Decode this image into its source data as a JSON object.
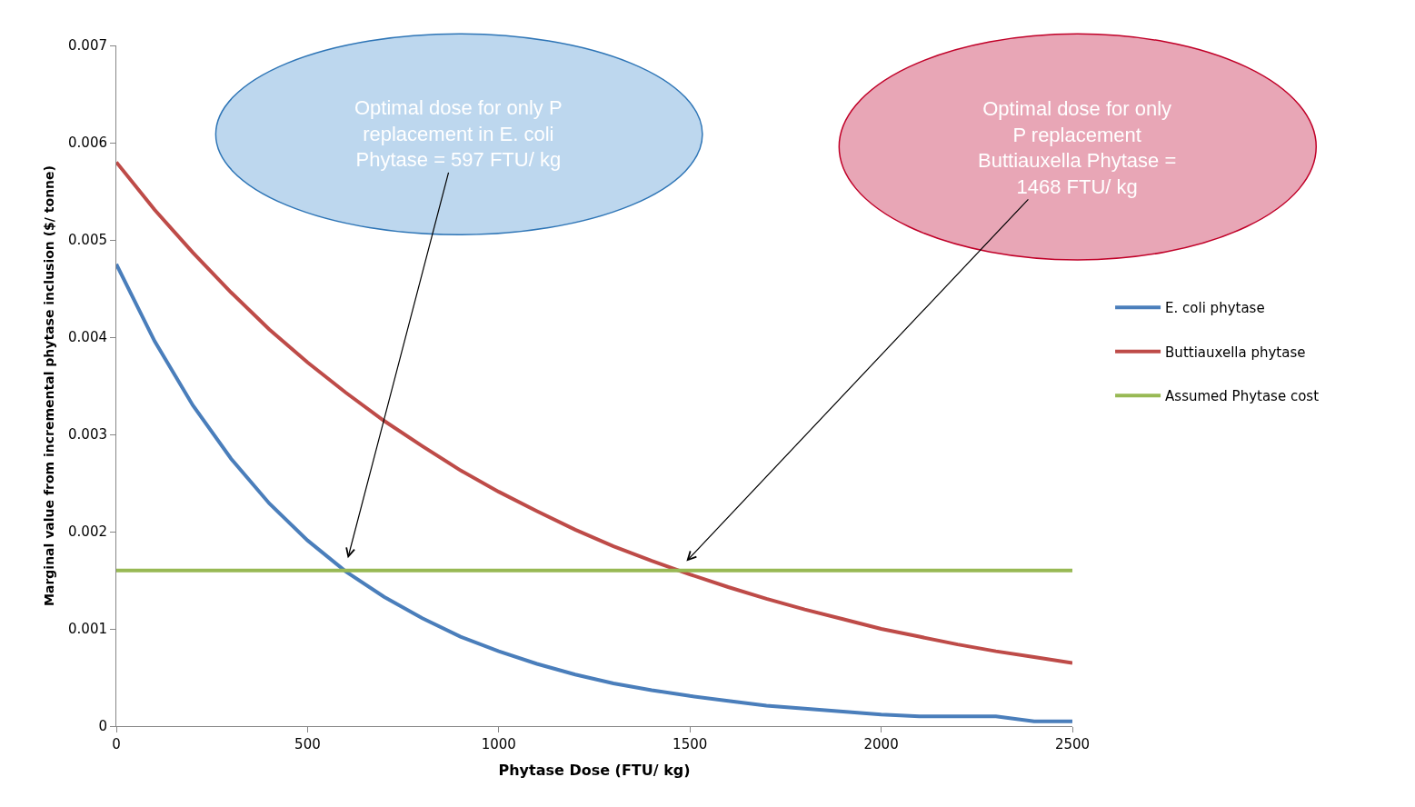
{
  "chart_data": {
    "type": "line",
    "xlabel": "Phytase Dose (FTU/ kg)",
    "ylabel": "Marginal value from incremental phytase inclusion ($/ tonne)",
    "x": [
      0,
      100,
      200,
      300,
      400,
      500,
      600,
      700,
      800,
      900,
      1000,
      1100,
      1200,
      1300,
      1400,
      1500,
      1600,
      1700,
      1800,
      1900,
      2000,
      2100,
      2200,
      2300,
      2400,
      2500
    ],
    "series": [
      {
        "name": "E. coli phytase",
        "color": "#4a7ebb",
        "values": [
          0.00475,
          0.00396,
          0.0033,
          0.00275,
          0.00229,
          0.00191,
          0.00159,
          0.00133,
          0.00111,
          0.00092,
          0.00077,
          0.00064,
          0.00053,
          0.00044,
          0.00037,
          0.00031,
          0.00026,
          0.00021,
          0.00018,
          0.00015,
          0.00012,
          0.0001,
          0.0001,
          0.0001,
          5e-05,
          5e-05
        ]
      },
      {
        "name": "Buttiauxella phytase",
        "color": "#be4b48",
        "values": [
          0.0058,
          0.00531,
          0.00487,
          0.00446,
          0.00408,
          0.00374,
          0.00343,
          0.00314,
          0.00288,
          0.00263,
          0.00241,
          0.00221,
          0.00202,
          0.00185,
          0.0017,
          0.00156,
          0.00143,
          0.00131,
          0.0012,
          0.0011,
          0.001,
          0.00092,
          0.00084,
          0.00077,
          0.00071,
          0.00065
        ]
      },
      {
        "name": "Assumed Phytase cost",
        "color": "#98b954",
        "x": [
          0,
          2500
        ],
        "values": [
          0.0016,
          0.0016
        ]
      }
    ],
    "xlim": [
      0,
      2500
    ],
    "xticks": [
      0,
      500,
      1000,
      1500,
      2000,
      2500
    ],
    "ylim": [
      0,
      0.007
    ],
    "yticks": [
      0,
      0.001,
      0.002,
      0.003,
      0.004,
      0.005,
      0.006,
      0.007
    ],
    "annotations": [
      {
        "text": "Optimal dose for only P replacement in E. coli Phytase = 597 FTU/ kg",
        "x": 597,
        "y": 0.0016
      },
      {
        "text": "Optimal dose for only P replacement Buttiauxella Phytase = 1468 FTU/ kg",
        "x": 1468,
        "y": 0.0016
      }
    ],
    "grid": false,
    "legend": "right",
    "marker": "none",
    "line_style": "solid"
  }
}
